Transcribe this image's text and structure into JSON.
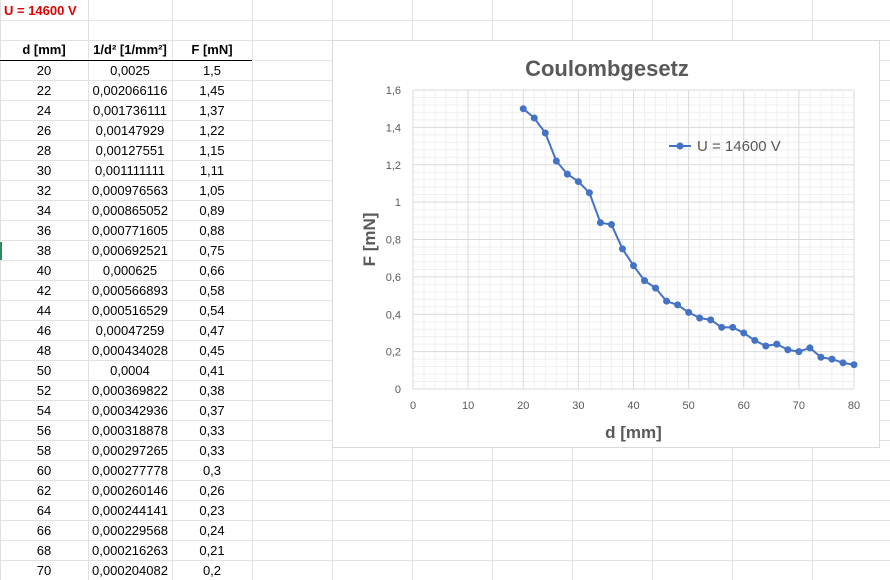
{
  "sheet": {
    "title_cell": "U = 14600 V",
    "headers": [
      "d [mm]",
      "1/d² [1/mm²]",
      "F [mN]"
    ],
    "rows": [
      [
        "20",
        "0,0025",
        "1,5"
      ],
      [
        "22",
        "0,002066116",
        "1,45"
      ],
      [
        "24",
        "0,001736111",
        "1,37"
      ],
      [
        "26",
        "0,00147929",
        "1,22"
      ],
      [
        "28",
        "0,00127551",
        "1,15"
      ],
      [
        "30",
        "0,001111111",
        "1,11"
      ],
      [
        "32",
        "0,000976563",
        "1,05"
      ],
      [
        "34",
        "0,000865052",
        "0,89"
      ],
      [
        "36",
        "0,000771605",
        "0,88"
      ],
      [
        "38",
        "0,000692521",
        "0,75"
      ],
      [
        "40",
        "0,000625",
        "0,66"
      ],
      [
        "42",
        "0,000566893",
        "0,58"
      ],
      [
        "44",
        "0,000516529",
        "0,54"
      ],
      [
        "46",
        "0,00047259",
        "0,47"
      ],
      [
        "48",
        "0,000434028",
        "0,45"
      ],
      [
        "50",
        "0,0004",
        "0,41"
      ],
      [
        "52",
        "0,000369822",
        "0,38"
      ],
      [
        "54",
        "0,000342936",
        "0,37"
      ],
      [
        "56",
        "0,000318878",
        "0,33"
      ],
      [
        "58",
        "0,000297265",
        "0,33"
      ],
      [
        "60",
        "0,000277778",
        "0,3"
      ],
      [
        "62",
        "0,000260146",
        "0,26"
      ],
      [
        "64",
        "0,000244141",
        "0,23"
      ],
      [
        "66",
        "0,000229568",
        "0,24"
      ],
      [
        "68",
        "0,000216263",
        "0,21"
      ],
      [
        "70",
        "0,000204082",
        "0,2"
      ]
    ]
  },
  "colors": {
    "title_red": "#e00000",
    "series_blue": "#4472c4",
    "grid_major": "#d9d9d9",
    "grid_minor": "#efefef",
    "text_gray": "#595959",
    "sheet_grid": "#e1e1e1"
  },
  "chart_data": {
    "type": "scatter",
    "title": "Coulombgesetz",
    "xlabel": "d [mm]",
    "ylabel": "F [mN]",
    "xlim": [
      0,
      80
    ],
    "ylim": [
      0,
      1.6
    ],
    "x_ticks": [
      "0",
      "10",
      "20",
      "30",
      "40",
      "50",
      "60",
      "70",
      "80"
    ],
    "y_ticks": [
      "0",
      "0,2",
      "0,4",
      "0,6",
      "0,8",
      "1",
      "1,2",
      "1,4",
      "1,6"
    ],
    "grid": true,
    "legend_position": "right",
    "series": [
      {
        "name": "U = 14600 V",
        "x": [
          20,
          22,
          24,
          26,
          28,
          30,
          32,
          34,
          36,
          38,
          40,
          42,
          44,
          46,
          48,
          50,
          52,
          54,
          56,
          58,
          60,
          62,
          64,
          66,
          68,
          70,
          72,
          74,
          76,
          78,
          80
        ],
        "y": [
          1.5,
          1.45,
          1.37,
          1.22,
          1.15,
          1.11,
          1.05,
          0.89,
          0.88,
          0.75,
          0.66,
          0.58,
          0.54,
          0.47,
          0.45,
          0.41,
          0.38,
          0.37,
          0.33,
          0.33,
          0.3,
          0.26,
          0.23,
          0.24,
          0.21,
          0.2,
          0.22,
          0.17,
          0.16,
          0.14,
          0.13
        ]
      }
    ]
  }
}
